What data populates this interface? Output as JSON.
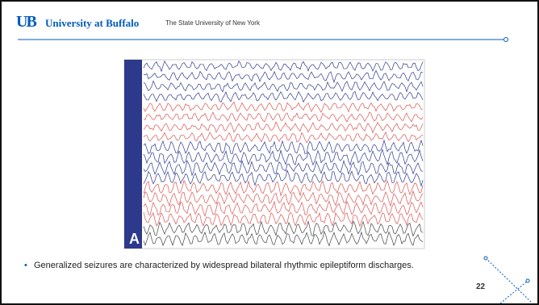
{
  "header": {
    "logo": "UB",
    "university": "University at Buffalo",
    "subtitle": "The State University of New York"
  },
  "figure": {
    "panel_label": "A"
  },
  "body": {
    "bullets": [
      "Generalized seizures are characterized by widespread bilateral rhythmic epileptiform discharges."
    ]
  },
  "footer": {
    "page_number": "22"
  }
}
